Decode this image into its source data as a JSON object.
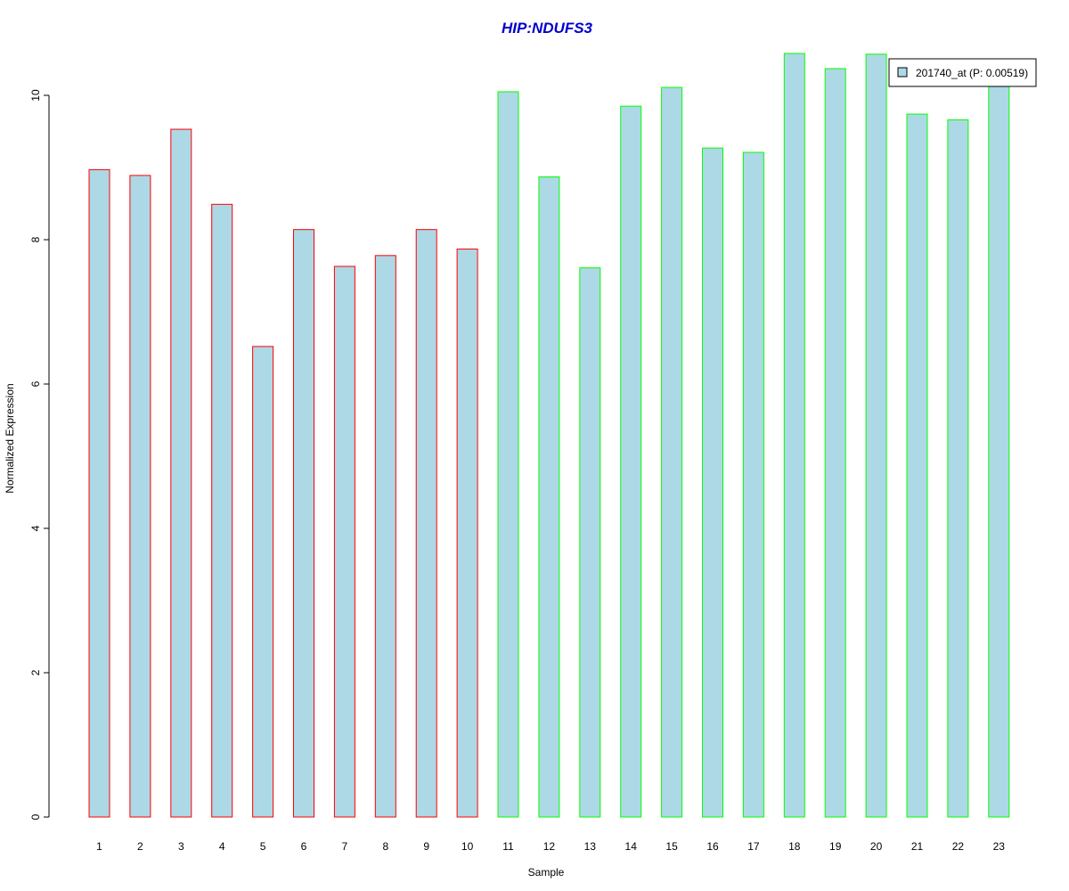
{
  "chart_data": {
    "type": "bar",
    "title": "HIP:NDUFS3",
    "xlabel": "Sample",
    "ylabel": "Normalized Expression",
    "ylim": [
      0,
      10.6
    ],
    "yticks": [
      0,
      2,
      4,
      6,
      8,
      10
    ],
    "grid": false,
    "legend_position": "top-right",
    "categories": [
      "1",
      "2",
      "3",
      "4",
      "5",
      "6",
      "7",
      "8",
      "9",
      "10",
      "11",
      "12",
      "13",
      "14",
      "15",
      "16",
      "17",
      "18",
      "19",
      "20",
      "21",
      "22",
      "23"
    ],
    "series": [
      {
        "name": "201740_at (P: 0.00519)",
        "values": [
          8.97,
          8.89,
          9.53,
          8.49,
          6.52,
          8.14,
          7.63,
          7.78,
          8.14,
          7.87,
          10.05,
          8.87,
          7.61,
          9.85,
          10.11,
          9.27,
          9.21,
          10.58,
          10.37,
          10.57,
          9.74,
          9.66,
          10.15
        ],
        "groups": [
          "a",
          "a",
          "a",
          "a",
          "a",
          "a",
          "a",
          "a",
          "a",
          "a",
          "b",
          "b",
          "b",
          "b",
          "b",
          "b",
          "b",
          "b",
          "b",
          "b",
          "b",
          "b",
          "b"
        ]
      }
    ],
    "colors": {
      "fill": "#add8e6",
      "border_group_a": "#ff0000",
      "border_group_b": "#00ff00",
      "title": "#0000cd"
    }
  }
}
